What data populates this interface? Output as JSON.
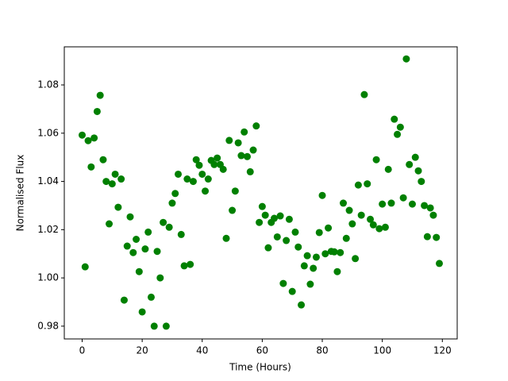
{
  "chart_data": {
    "type": "scatter",
    "xlabel": "Time (Hours)",
    "ylabel": "Normalised Flux",
    "x": [
      0,
      1,
      2,
      3,
      4,
      5,
      6,
      7,
      8,
      9,
      10,
      11,
      12,
      13,
      14,
      15,
      16,
      17,
      18,
      19,
      20,
      21,
      22,
      23,
      24,
      25,
      26,
      27,
      28,
      29,
      30,
      31,
      32,
      33,
      34,
      35,
      36,
      37,
      38,
      39,
      40,
      41,
      42,
      43,
      44,
      45,
      46,
      47,
      48,
      49,
      50,
      51,
      52,
      53,
      54,
      55,
      56,
      57,
      58,
      59,
      60,
      61,
      62,
      63,
      64,
      65,
      66,
      67,
      68,
      69,
      70,
      71,
      72,
      73,
      74,
      75,
      76,
      77,
      78,
      79,
      80,
      81,
      82,
      83,
      84,
      85,
      86,
      87,
      88,
      89,
      90,
      91,
      92,
      93,
      94,
      95,
      96,
      97,
      98,
      99,
      100,
      101,
      102,
      103,
      104,
      105,
      106,
      107,
      108,
      109,
      110,
      111,
      112,
      113,
      114,
      115,
      116,
      117,
      118,
      119
    ],
    "y": [
      1.0592,
      1.0046,
      1.0569,
      1.046,
      1.058,
      1.069,
      1.0757,
      1.049,
      1.04,
      1.0224,
      1.039,
      1.043,
      1.0293,
      1.041,
      0.9908,
      1.0132,
      1.0253,
      1.0105,
      1.016,
      1.0026,
      0.9859,
      1.012,
      1.019,
      0.992,
      0.98,
      1.011,
      1.0,
      1.023,
      0.98,
      1.021,
      1.031,
      1.035,
      1.043,
      1.018,
      1.005,
      1.041,
      1.0056,
      1.04,
      1.049,
      1.0467,
      1.043,
      1.036,
      1.041,
      1.0487,
      1.047,
      1.0497,
      1.047,
      1.045,
      1.0164,
      1.057,
      1.028,
      1.036,
      1.056,
      1.0507,
      1.0605,
      1.0503,
      1.044,
      1.053,
      1.063,
      1.023,
      1.0296,
      1.026,
      1.0125,
      1.023,
      1.0247,
      1.017,
      1.0257,
      0.9977,
      1.0155,
      1.0243,
      0.9944,
      1.019,
      1.0128,
      0.9888,
      1.005,
      1.0092,
      0.9974,
      1.004,
      1.0086,
      1.0188,
      1.0342,
      1.01,
      1.0207,
      1.011,
      1.0108,
      1.0026,
      1.0105,
      1.031,
      1.0164,
      1.028,
      1.0224,
      1.008,
      1.0385,
      1.026,
      1.076,
      1.039,
      1.0243,
      1.022,
      1.049,
      1.0204,
      1.0306,
      1.021,
      1.045,
      1.031,
      1.0658,
      1.0595,
      1.0625,
      1.0332,
      1.0908,
      1.047,
      1.0306,
      1.05,
      1.0444,
      1.04,
      1.03,
      1.0171,
      1.029,
      1.026,
      1.0168,
      1.006
    ],
    "color": "#008000",
    "xlim": [
      -5.95,
      124.95
    ],
    "xticks": [
      0,
      20,
      40,
      60,
      80,
      100,
      120
    ],
    "ylim": [
      0.9747,
      1.0958
    ],
    "yticks": [
      0.98,
      {
        "value": 1.0,
        "label": "1.00"
      },
      1.02,
      1.04,
      1.06,
      1.08
    ]
  }
}
